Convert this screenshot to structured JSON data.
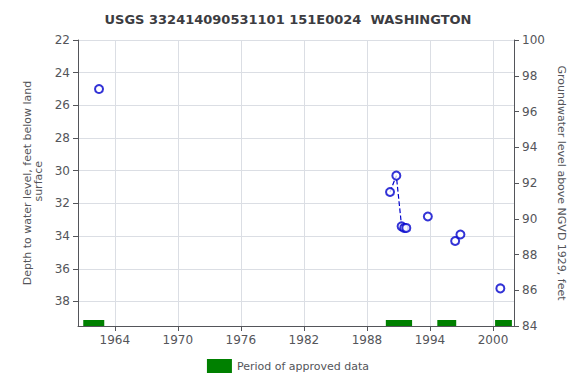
{
  "chart_data": {
    "type": "scatter",
    "title": "USGS 332414090531101 151E0024  WASHINGTON",
    "y_label": "Depth to water level, feet below land\n surface",
    "y2_label": "Groundwater level above NGVD 1929, feet",
    "xlim": [
      1960.5,
      2002.0
    ],
    "xticks": [
      1964,
      1970,
      1976,
      1982,
      1988,
      1994,
      2000
    ],
    "ylim": [
      39.5,
      22
    ],
    "yticks": [
      22,
      24,
      26,
      28,
      30,
      32,
      34,
      36,
      38
    ],
    "y2lim": [
      84,
      100
    ],
    "y2ticks": [
      84,
      86,
      88,
      90,
      92,
      94,
      96,
      98,
      100
    ],
    "grid": true,
    "legend": "bottom",
    "series": [
      {
        "type": "scatter",
        "marker": "circle",
        "color": "#0000CC",
        "x": [
          1962.5,
          1990.2,
          1990.8,
          1991.3,
          1991.55,
          1991.75,
          1993.8,
          1996.4,
          1996.9,
          2000.7
        ],
        "values": [
          25.0,
          31.3,
          30.3,
          33.4,
          33.5,
          33.5,
          32.8,
          34.3,
          33.9,
          37.2
        ]
      },
      {
        "type": "line",
        "line_style": "dashed",
        "color": "#0000CC",
        "x": [
          1990.2,
          1990.8,
          1991.3,
          1991.55,
          1991.75
        ],
        "values": [
          31.3,
          30.3,
          33.4,
          33.5,
          33.5
        ]
      },
      {
        "type": "span",
        "name": "Period of approved data",
        "color": "#008000",
        "x_start": [
          1961.0,
          1989.8,
          1994.7,
          2000.2
        ],
        "x_end": [
          1963.0,
          1992.3,
          1996.5,
          2001.8
        ]
      }
    ]
  }
}
